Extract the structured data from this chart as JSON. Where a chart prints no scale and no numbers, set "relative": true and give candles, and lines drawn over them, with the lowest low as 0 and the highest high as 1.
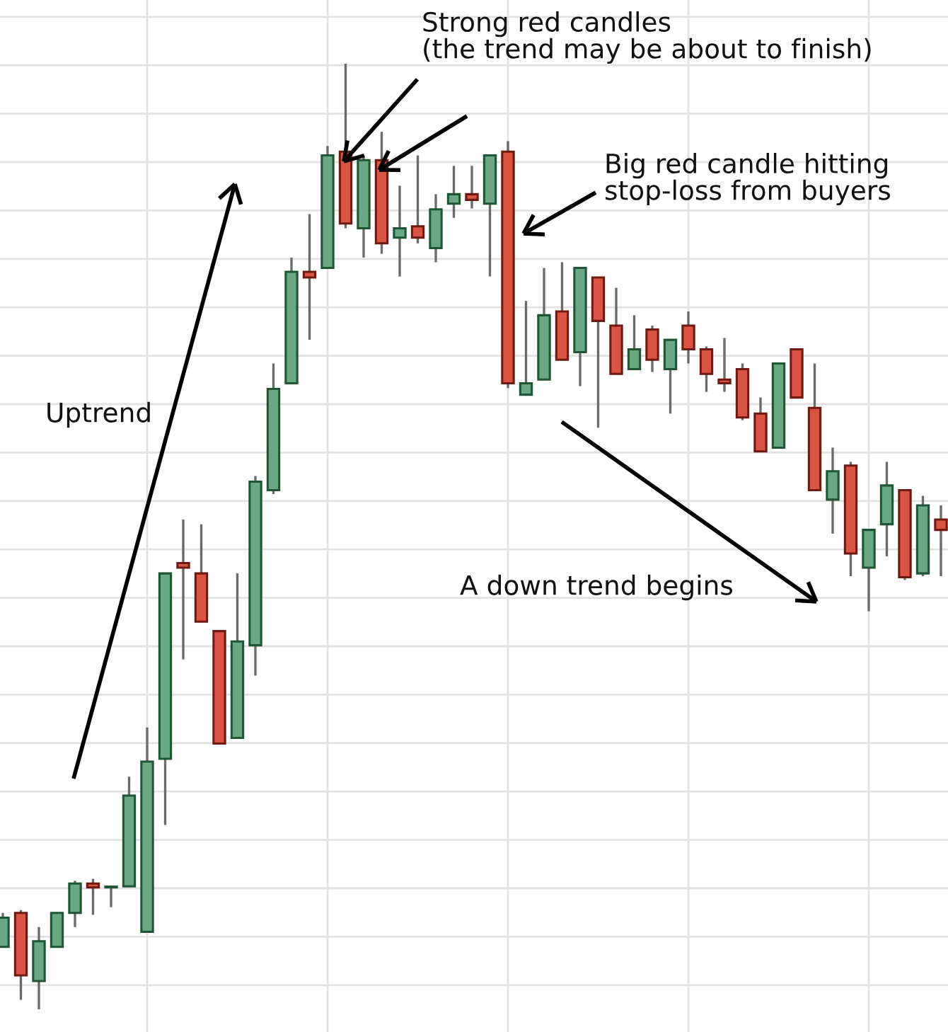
{
  "chart_data": {
    "type": "candlestick",
    "relative": true,
    "grid": true,
    "categories": [
      null,
      null,
      null,
      null,
      null,
      null,
      null,
      null,
      null,
      null,
      null,
      null,
      null,
      null,
      null,
      null,
      null,
      null,
      null,
      null,
      null,
      null,
      null,
      null,
      null,
      null,
      null,
      null,
      null,
      null,
      null,
      null,
      null,
      null,
      null,
      null,
      null,
      null,
      null,
      null,
      null,
      null,
      null,
      null,
      null,
      null,
      null,
      null,
      null,
      null,
      null,
      null,
      null
    ],
    "ohlc": [
      [
        0.066,
        0.102,
        0.066,
        0.097
      ],
      [
        0.102,
        0.105,
        0.01,
        0.036
      ],
      [
        0.03,
        0.087,
        0,
        0.072
      ],
      [
        0.066,
        0.102,
        0.066,
        0.102
      ],
      [
        0.102,
        0.136,
        0.087,
        0.133
      ],
      [
        0.133,
        0.138,
        0.1,
        0.129
      ],
      [
        0.129,
        0.129,
        0.108,
        0.129
      ],
      [
        0.13,
        0.246,
        0.13,
        0.226
      ],
      [
        0.082,
        0.298,
        0.082,
        0.262
      ],
      [
        0.265,
        0.461,
        0.195,
        0.461
      ],
      [
        0.472,
        0.518,
        0.37,
        0.467
      ],
      [
        0.461,
        0.513,
        0.41,
        0.41
      ],
      [
        0.4,
        0.4,
        0.281,
        0.281
      ],
      [
        0.287,
        0.461,
        0.287,
        0.389
      ],
      [
        0.385,
        0.564,
        0.353,
        0.558
      ],
      [
        0.549,
        0.683,
        0.545,
        0.656
      ],
      [
        0.662,
        0.795,
        0.662,
        0.78
      ],
      [
        0.78,
        0.841,
        0.708,
        0.774
      ],
      [
        0.784,
        0.913,
        0.784,
        0.903
      ],
      [
        0.907,
        1,
        0.826,
        0.831
      ],
      [
        0.826,
        0.903,
        0.795,
        0.898
      ],
      [
        0.898,
        0.928,
        0.799,
        0.81
      ],
      [
        0.816,
        0.871,
        0.775,
        0.826
      ],
      [
        0.828,
        0.903,
        0.81,
        0.816
      ],
      [
        0.805,
        0.862,
        0.79,
        0.846
      ],
      [
        0.852,
        0.892,
        0.837,
        0.862
      ],
      [
        0.862,
        0.892,
        0.847,
        0.856
      ],
      [
        0.852,
        0.903,
        0.775,
        0.903
      ],
      [
        0.907,
        0.918,
        0.657,
        0.662
      ],
      [
        0.65,
        0.749,
        0.65,
        0.662
      ],
      [
        0.666,
        0.784,
        0.666,
        0.734
      ],
      [
        0.738,
        0.79,
        0.687,
        0.687
      ],
      [
        0.695,
        0.784,
        0.659,
        0.784
      ],
      [
        0.774,
        0.774,
        0.615,
        0.728
      ],
      [
        0.723,
        0.763,
        0.672,
        0.672
      ],
      [
        0.677,
        0.734,
        0.677,
        0.698
      ],
      [
        0.719,
        0.723,
        0.674,
        0.687
      ],
      [
        0.677,
        0.708,
        0.63,
        0.708
      ],
      [
        0.723,
        0.738,
        0.683,
        0.698
      ],
      [
        0.698,
        0.701,
        0.653,
        0.672
      ],
      [
        0.666,
        0.71,
        0.653,
        0.662
      ],
      [
        0.677,
        0.683,
        0.623,
        0.626
      ],
      [
        0.63,
        0.647,
        0.59,
        0.59
      ],
      [
        0.594,
        0.683,
        0.594,
        0.683
      ],
      [
        0.698,
        0.698,
        0.647,
        0.647
      ],
      [
        0.636,
        0.683,
        0.549,
        0.549
      ],
      [
        0.539,
        0.594,
        0.503,
        0.569
      ],
      [
        0.575,
        0.579,
        0.458,
        0.482
      ],
      [
        0.467,
        0.507,
        0.421,
        0.507
      ],
      [
        0.513,
        0.579,
        0.479,
        0.554
      ],
      [
        0.549,
        0.549,
        0.454,
        0.457
      ],
      [
        0.461,
        0.543,
        0.458,
        0.533
      ],
      [
        0.518,
        0.533,
        0.458,
        0.507
      ]
    ],
    "annotations": [
      "Strong red candles\n(the trend may be about to finish)",
      "Big red candle hitting\nstop-loss from buyers",
      "Uptrend",
      "A down trend begins"
    ]
  }
}
